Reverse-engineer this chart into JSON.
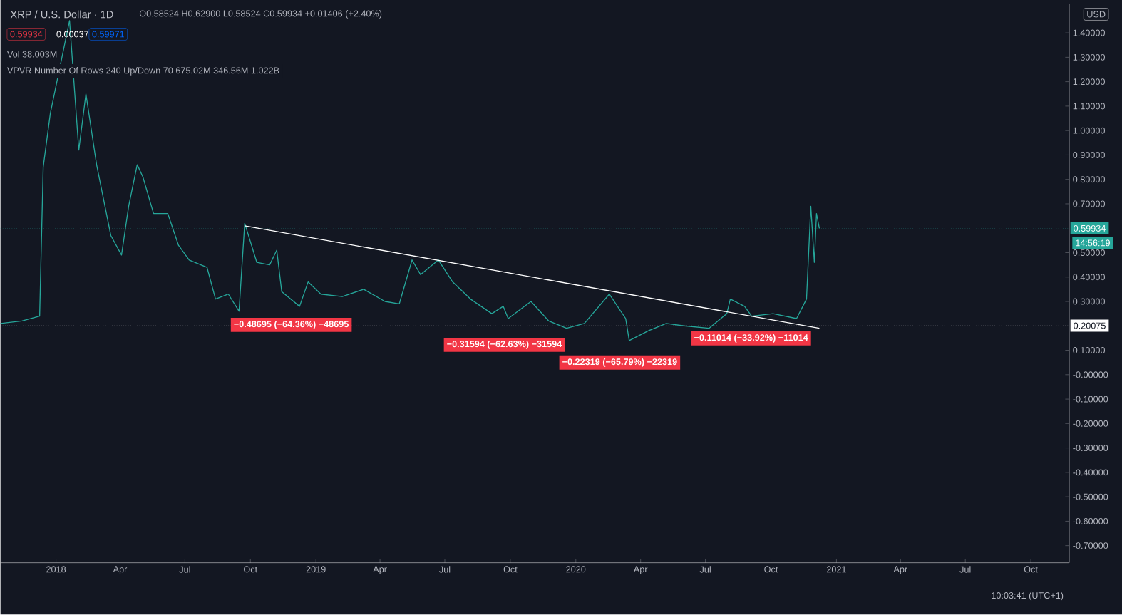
{
  "chart_data": {
    "type": "line",
    "title": "XRP / U.S. Dollar · 1D",
    "subtitle": "O0.58524 H0.62900 L0.58524 C0.59934 +0.01406 (+2.40%)",
    "series": [
      {
        "color": "#26a69a",
        "x": [
          "2017-10-15",
          "2017-11-14",
          "2017-12-09",
          "2017-12-14",
          "2017-12-24",
          "2018-01-20",
          "2018-02-02",
          "2018-02-12",
          "2018-02-27",
          "2018-03-19",
          "2018-04-03",
          "2018-04-13",
          "2018-04-25",
          "2018-05-03",
          "2018-05-18",
          "2018-06-07",
          "2018-06-22",
          "2018-07-07",
          "2018-08-01",
          "2018-08-13",
          "2018-08-31",
          "2018-09-15",
          "2018-09-23",
          "2018-10-10",
          "2018-10-28",
          "2018-11-07",
          "2018-11-14",
          "2018-12-09",
          "2018-12-21",
          "2019-01-08",
          "2019-02-07",
          "2019-03-09",
          "2019-04-08",
          "2019-04-28",
          "2019-05-16",
          "2019-05-28",
          "2019-06-22",
          "2019-07-12",
          "2019-08-06",
          "2019-09-05",
          "2019-09-21",
          "2019-09-28",
          "2019-10-30",
          "2019-11-24",
          "2019-12-19",
          "2020-01-13",
          "2020-02-17",
          "2020-03-11",
          "2020-03-16",
          "2020-04-12",
          "2020-05-07",
          "2020-06-01",
          "2020-07-06",
          "2020-07-31",
          "2020-08-05",
          "2020-08-25",
          "2020-09-04",
          "2020-10-04",
          "2020-11-06",
          "2020-11-20",
          "2020-11-26",
          "2020-12-01",
          "2020-12-04",
          "2020-12-08"
        ],
        "values": [
          0.21,
          0.22,
          0.24,
          0.85,
          1.07,
          1.45,
          0.92,
          1.15,
          0.86,
          0.57,
          0.49,
          0.69,
          0.86,
          0.81,
          0.66,
          0.66,
          0.53,
          0.47,
          0.44,
          0.31,
          0.33,
          0.26,
          0.62,
          0.46,
          0.45,
          0.51,
          0.34,
          0.28,
          0.38,
          0.33,
          0.32,
          0.35,
          0.3,
          0.29,
          0.47,
          0.41,
          0.47,
          0.38,
          0.31,
          0.25,
          0.28,
          0.23,
          0.3,
          0.22,
          0.19,
          0.21,
          0.33,
          0.23,
          0.14,
          0.18,
          0.21,
          0.2,
          0.19,
          0.25,
          0.31,
          0.28,
          0.24,
          0.25,
          0.23,
          0.31,
          0.69,
          0.46,
          0.66,
          0.59934
        ]
      },
      {
        "type": "line",
        "color": "#ffffff",
        "x": [
          "2018-09-23",
          "2020-12-08"
        ],
        "values": [
          0.61,
          0.19
        ]
      }
    ],
    "xlim": [
      "2017-10-15",
      "2021-11-24"
    ],
    "xticks": [
      {
        "value": "2018-01-01",
        "label": "2018"
      },
      {
        "value": "2018-04-01",
        "label": "Apr"
      },
      {
        "value": "2018-07-01",
        "label": "Jul"
      },
      {
        "value": "2018-10-01",
        "label": "Oct"
      },
      {
        "value": "2019-01-01",
        "label": "2019"
      },
      {
        "value": "2019-04-01",
        "label": "Apr"
      },
      {
        "value": "2019-07-01",
        "label": "Jul"
      },
      {
        "value": "2019-10-01",
        "label": "Oct"
      },
      {
        "value": "2020-01-01",
        "label": "2020"
      },
      {
        "value": "2020-04-01",
        "label": "Apr"
      },
      {
        "value": "2020-07-01",
        "label": "Jul"
      },
      {
        "value": "2020-10-01",
        "label": "Oct"
      },
      {
        "value": "2021-01-01",
        "label": "2021"
      },
      {
        "value": "2021-04-01",
        "label": "Apr"
      },
      {
        "value": "2021-07-01",
        "label": "Jul"
      },
      {
        "value": "2021-10-01",
        "label": "Oct"
      }
    ],
    "ylim": [
      -0.77,
      1.52
    ],
    "yticks": [
      {
        "value": 1.4,
        "label": "1.40000"
      },
      {
        "value": 1.3,
        "label": "1.30000"
      },
      {
        "value": 1.2,
        "label": "1.20000"
      },
      {
        "value": 1.1,
        "label": "1.10000"
      },
      {
        "value": 1.0,
        "label": "1.00000"
      },
      {
        "value": 0.9,
        "label": "0.90000"
      },
      {
        "value": 0.8,
        "label": "0.80000"
      },
      {
        "value": 0.7,
        "label": "0.70000"
      },
      {
        "value": 0.5,
        "label": "0.50000"
      },
      {
        "value": 0.4,
        "label": "0.40000"
      },
      {
        "value": 0.3,
        "label": "0.30000"
      },
      {
        "value": 0.1,
        "label": "0.10000"
      },
      {
        "value": 0,
        "label": "-0.00000"
      },
      {
        "value": -0.1,
        "label": "-0.10000"
      },
      {
        "value": -0.2,
        "label": "-0.20000"
      },
      {
        "value": -0.3,
        "label": "-0.30000"
      },
      {
        "value": -0.4,
        "label": "-0.40000"
      },
      {
        "value": -0.5,
        "label": "-0.50000"
      },
      {
        "value": -0.6,
        "label": "-0.60000"
      },
      {
        "value": -0.7,
        "label": "-0.70000"
      }
    ],
    "ref_lines": [
      {
        "axis": "y",
        "value": 0.59934,
        "label": "0.59934",
        "color": "#26a69a",
        "line_style": "dotted"
      },
      {
        "axis": "y",
        "value": 0.20075,
        "label": "0.20075",
        "color": "#ffffff",
        "line_style": "dotted"
      }
    ],
    "annotations": [
      "0.59934",
      "0.00037",
      "0.59971",
      "Vol 38.003M",
      "VPVR Number Of Rows 240 Up/Down 70 675.02M 346.56M 1.022B",
      "14:56:19",
      "USD",
      "10:03:41 (UTC+1)",
      "−0.48695 (−64.36%) −48695",
      "−0.31594 (−62.63%) −31594",
      "−0.22319 (−65.79%) −22319",
      "−0.11014 (−33.92%) −11014"
    ],
    "grid": false
  }
}
